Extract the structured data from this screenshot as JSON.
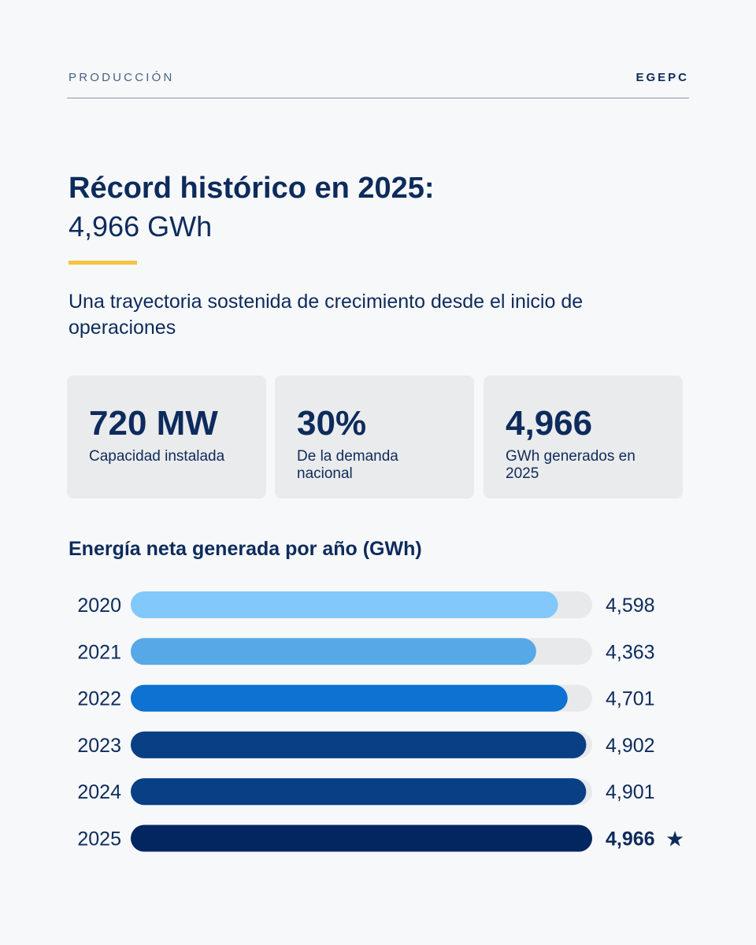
{
  "header": {
    "section": "PRODUCCIÓN",
    "brand": "EGEPC"
  },
  "hero": {
    "title": "Récord histórico en 2025:",
    "value": "4,966 GWh",
    "description": "Una trayectoria sostenida de crecimiento desde el inicio de operaciones"
  },
  "stats": [
    {
      "value": "720 MW",
      "label": "Capacidad instalada"
    },
    {
      "value": "30%",
      "label": "De la demanda nacional"
    },
    {
      "value": "4,966",
      "label": "GWh generados en 2025"
    }
  ],
  "colors": {
    "track": "#e8e9ea",
    "bars": [
      "#82c8fa",
      "#57a8e6",
      "#0d72d1",
      "#083f85",
      "#083f85",
      "#012660"
    ],
    "accent": "#f2c53d"
  },
  "chart_data": {
    "type": "bar",
    "orientation": "horizontal",
    "title": "Energía neta generada por año (GWh)",
    "categories": [
      "2020",
      "2021",
      "2022",
      "2023",
      "2024",
      "2025"
    ],
    "values": [
      4598,
      4363,
      4701,
      4902,
      4901,
      4966
    ],
    "value_labels": [
      "4,598",
      "4,363",
      "4,701",
      "4,902",
      "4,901",
      "4,966"
    ],
    "highlight_index": 5,
    "highlight_marker": "★",
    "xlim": [
      0,
      4966
    ]
  }
}
